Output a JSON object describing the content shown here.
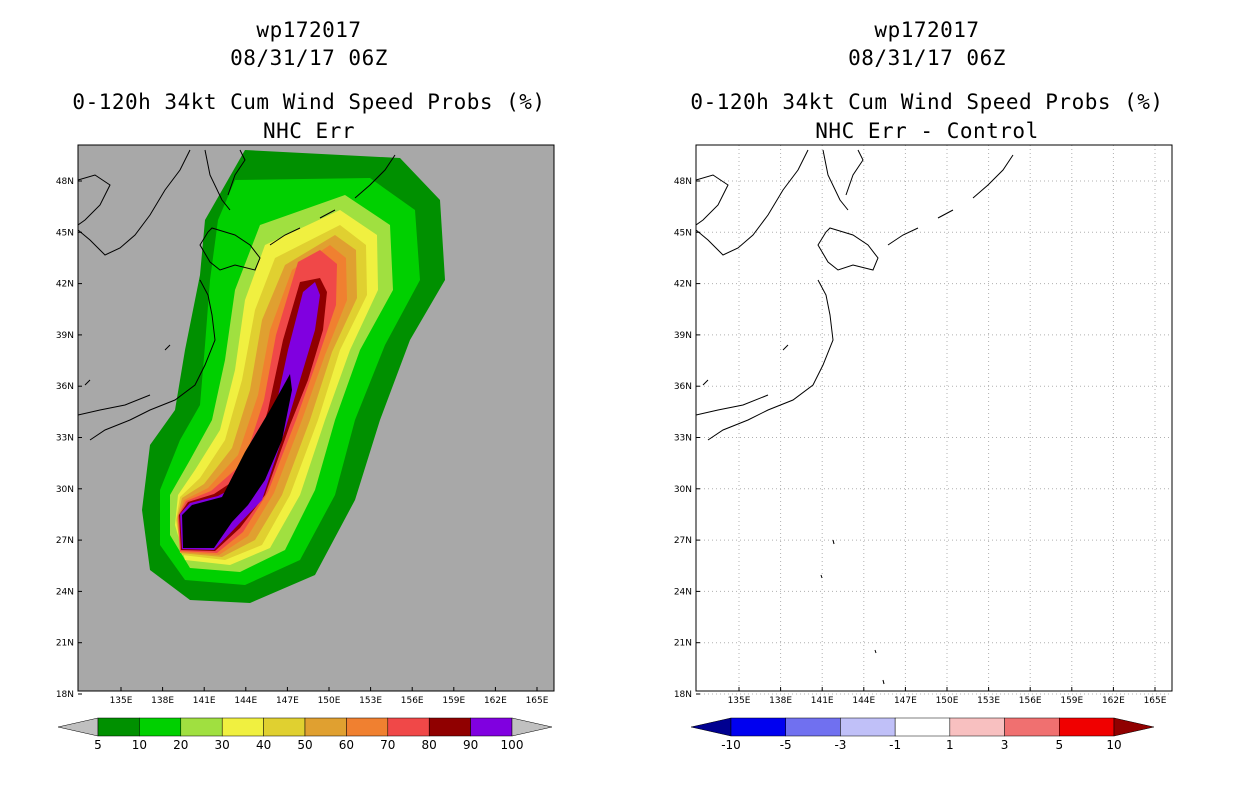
{
  "panels": [
    {
      "storm_id": "wp172017",
      "datetime": "08/31/17 06Z",
      "product": "0-120h 34kt Cum Wind Speed Probs (%)",
      "subtitle": "NHC Err",
      "colorbar": {
        "labels": [
          "5",
          "10",
          "20",
          "30",
          "40",
          "50",
          "60",
          "70",
          "80",
          "90",
          "100"
        ],
        "colors": [
          "#009000",
          "#00d000",
          "#a0e040",
          "#f0f040",
          "#e0d030",
          "#e0a030",
          "#f08030",
          "#f04848",
          "#900000",
          "#8000e0"
        ],
        "under_color": "#c0c0c0",
        "over_color": "#c0c0c0"
      }
    },
    {
      "storm_id": "wp172017",
      "datetime": "08/31/17 06Z",
      "product": "0-120h 34kt Cum Wind Speed Probs (%)",
      "subtitle": "NHC Err - Control",
      "colorbar": {
        "labels": [
          "-10",
          "-5",
          "-3",
          "-1",
          "1",
          "3",
          "5",
          "10"
        ],
        "colors": [
          "#0000f0",
          "#7070f0",
          "#c0c0f8",
          "#ffffff",
          "#f8c0c0",
          "#f07070",
          "#f00000"
        ],
        "under_color": "#000090",
        "over_color": "#900000"
      }
    }
  ],
  "axes": {
    "lon_labels": [
      "135E",
      "138E",
      "141E",
      "144E",
      "147E",
      "150E",
      "153E",
      "156E",
      "159E",
      "162E",
      "165E"
    ],
    "lat_labels": [
      "48N",
      "45N",
      "42N",
      "39N",
      "36N",
      "33N",
      "30N",
      "27N",
      "24N",
      "21N",
      "18N"
    ]
  },
  "colors": {
    "background_left": "#a8a8a8",
    "background_right": "#ffffff",
    "coastline": "#000000"
  }
}
